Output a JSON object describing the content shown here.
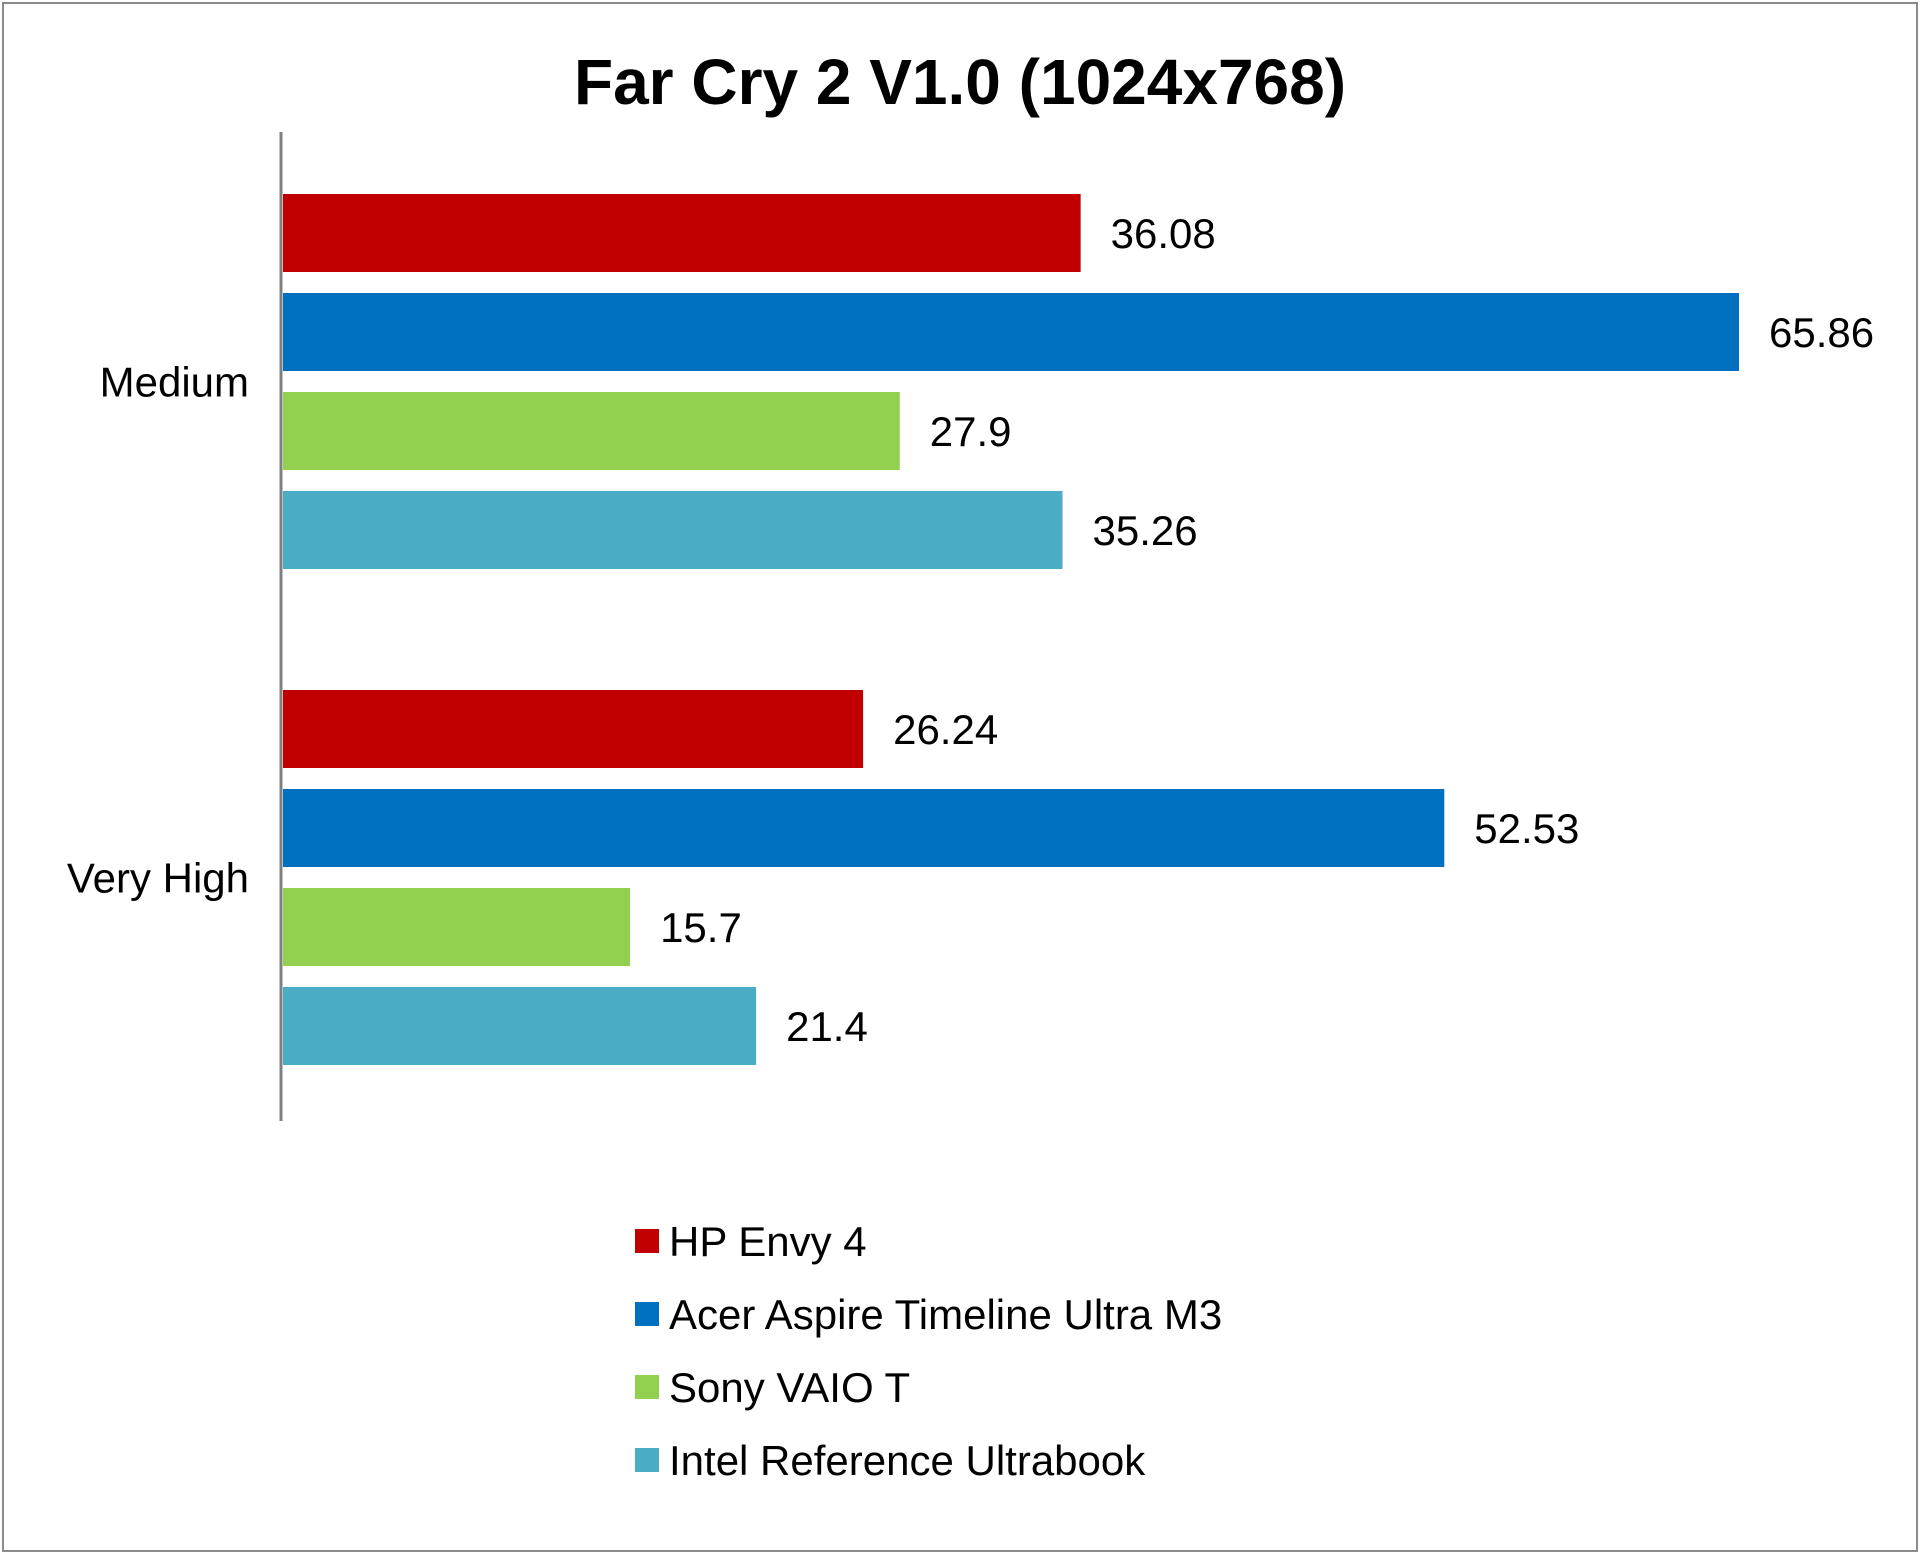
{
  "chart_data": {
    "type": "bar",
    "orientation": "horizontal",
    "title": "Far Cry 2 V1.0 (1024x768)",
    "categories": [
      "Medium",
      "Very High"
    ],
    "series": [
      {
        "name": "HP Envy 4",
        "color": "#C00000",
        "values": [
          36.08,
          26.24
        ]
      },
      {
        "name": "Acer Aspire Timeline Ultra M3",
        "color": "#0070C0",
        "values": [
          65.86,
          52.53
        ]
      },
      {
        "name": "Sony VAIO T",
        "color": "#92D050",
        "values": [
          27.9,
          15.7
        ]
      },
      {
        "name": "Intel Reference Ultrabook",
        "color": "#4BACC6",
        "values": [
          35.26,
          21.4
        ]
      }
    ],
    "xlim": [
      0,
      66
    ],
    "grid": false,
    "data_labels": true,
    "legend_position": "bottom"
  }
}
